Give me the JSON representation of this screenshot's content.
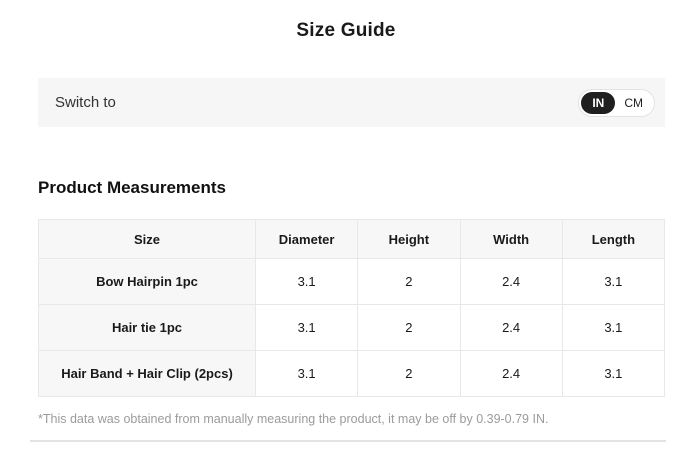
{
  "page": {
    "title": "Size Guide"
  },
  "unit_switch": {
    "label": "Switch to",
    "options": [
      {
        "label": "IN",
        "selected": true
      },
      {
        "label": "CM",
        "selected": false
      }
    ]
  },
  "measurements": {
    "heading": "Product Measurements",
    "table": {
      "columns": [
        "Size",
        "Diameter",
        "Height",
        "Width",
        "Length"
      ],
      "rows": [
        {
          "size": "Bow Hairpin 1pc",
          "values": [
            "3.1",
            "2",
            "2.4",
            "3.1"
          ]
        },
        {
          "size": "Hair tie 1pc",
          "values": [
            "3.1",
            "2",
            "2.4",
            "3.1"
          ]
        },
        {
          "size": "Hair Band + Hair Clip (2pcs)",
          "values": [
            "3.1",
            "2",
            "2.4",
            "3.1"
          ]
        }
      ]
    },
    "footnote": "*This data was obtained from manually measuring the product, it may be off by 0.39-0.79 IN."
  },
  "colors": {
    "accent_dark": "#1f1f1f",
    "bar_bg": "#f6f6f6",
    "table_head_bg": "#f7f7f7",
    "border": "#e8e8e8",
    "footnote_text": "#9b9b9b"
  }
}
